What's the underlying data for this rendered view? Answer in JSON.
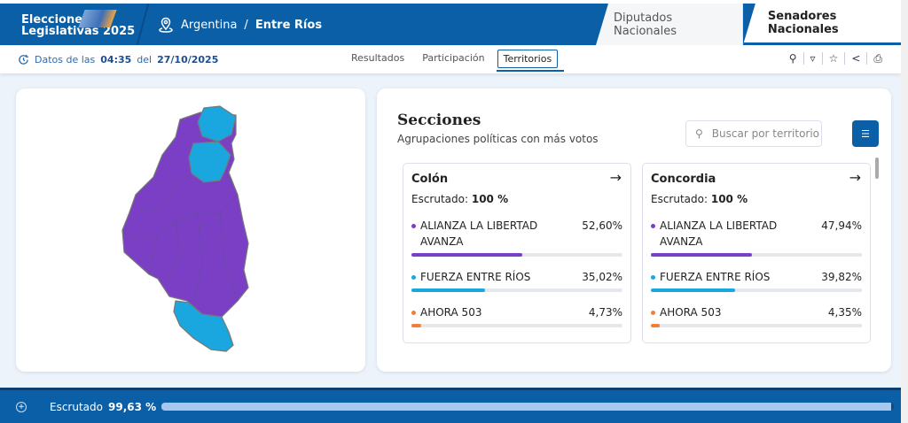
{
  "header": {
    "logo_line1": "Elecciones",
    "logo_line2": "Legislativas 2025",
    "breadcrumb_country": "Argentina",
    "breadcrumb_sep": "/",
    "breadcrumb_province": "Entre Ríos",
    "tabs": [
      {
        "label": "Diputados Nacionales",
        "active": false
      },
      {
        "label": "Senadores Nacionales",
        "active": true
      }
    ]
  },
  "subheader": {
    "datos_prefix": "Datos de las",
    "time": "04:35",
    "datos_mid": "del",
    "date": "27/10/2025",
    "nav": [
      {
        "label": "Resultados"
      },
      {
        "label": "Participación"
      },
      {
        "label": "Territorios",
        "active": true
      }
    ],
    "tools": [
      "search-icon",
      "filter-icon",
      "star-icon",
      "share-icon",
      "print-icon"
    ]
  },
  "map": {
    "colors": {
      "purple": "#7b3fc6",
      "cyan": "#1aa7e0"
    }
  },
  "secciones": {
    "title": "Secciones",
    "subtitle": "Agrupaciones políticas con más votos",
    "search_placeholder": "Buscar por territorio",
    "cards": [
      {
        "name": "Colón",
        "escrutado_label": "Escrutado:",
        "escrutado": "100 %",
        "parties": [
          {
            "name": "ALIANZA LA LIBERTAD AVANZA",
            "pct": "52,60%",
            "value": 52.6,
            "color": "#7b3fc6"
          },
          {
            "name": "FUERZA ENTRE RÍOS",
            "pct": "35,02%",
            "value": 35.02,
            "color": "#1aa7e0"
          },
          {
            "name": "AHORA 503",
            "pct": "4,73%",
            "value": 4.73,
            "color": "#f07f3c"
          }
        ]
      },
      {
        "name": "Concordia",
        "escrutado_label": "Escrutado:",
        "escrutado": "100 %",
        "parties": [
          {
            "name": "ALIANZA LA LIBERTAD AVANZA",
            "pct": "47,94%",
            "value": 47.94,
            "color": "#7b3fc6"
          },
          {
            "name": "FUERZA ENTRE RÍOS",
            "pct": "39,82%",
            "value": 39.82,
            "color": "#1aa7e0"
          },
          {
            "name": "AHORA 503",
            "pct": "4,35%",
            "value": 4.35,
            "color": "#f07f3c"
          }
        ]
      }
    ]
  },
  "footer": {
    "label": "Escrutado",
    "value": "99,63 %",
    "progress": 99.63
  }
}
